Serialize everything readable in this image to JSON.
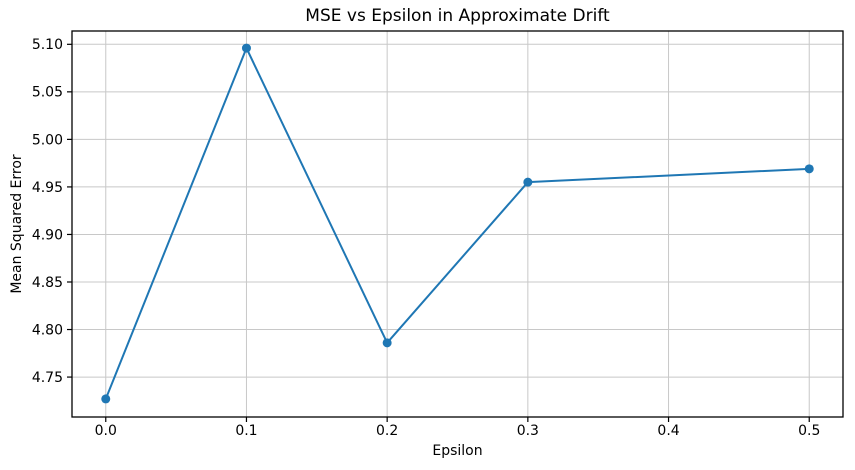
{
  "chart_data": {
    "type": "line",
    "title": "MSE vs Epsilon in Approximate Drift",
    "xlabel": "Epsilon",
    "ylabel": "Mean Squared Error",
    "x": [
      0.0,
      0.1,
      0.2,
      0.3,
      0.5
    ],
    "y": [
      4.727,
      5.096,
      4.786,
      4.955,
      4.969
    ],
    "xlim": [
      -0.024,
      0.524
    ],
    "ylim": [
      4.708,
      5.114
    ],
    "xticks": {
      "values": [
        0.0,
        0.1,
        0.2,
        0.3,
        0.4,
        0.5
      ],
      "labels": [
        "0.0",
        "0.1",
        "0.2",
        "0.3",
        "0.4",
        "0.5"
      ]
    },
    "yticks": {
      "values": [
        4.75,
        4.8,
        4.85,
        4.9,
        4.95,
        5.0,
        5.05,
        5.1
      ],
      "labels": [
        "4.75",
        "4.80",
        "4.85",
        "4.90",
        "4.95",
        "5.00",
        "5.05",
        "5.10"
      ]
    },
    "grid": true,
    "legend": "none",
    "marker": "o",
    "colors": {
      "line": "#1f77b4",
      "grid": "#c8c8c8",
      "frame": "#000000",
      "text": "#000000",
      "background": "#ffffff"
    }
  }
}
